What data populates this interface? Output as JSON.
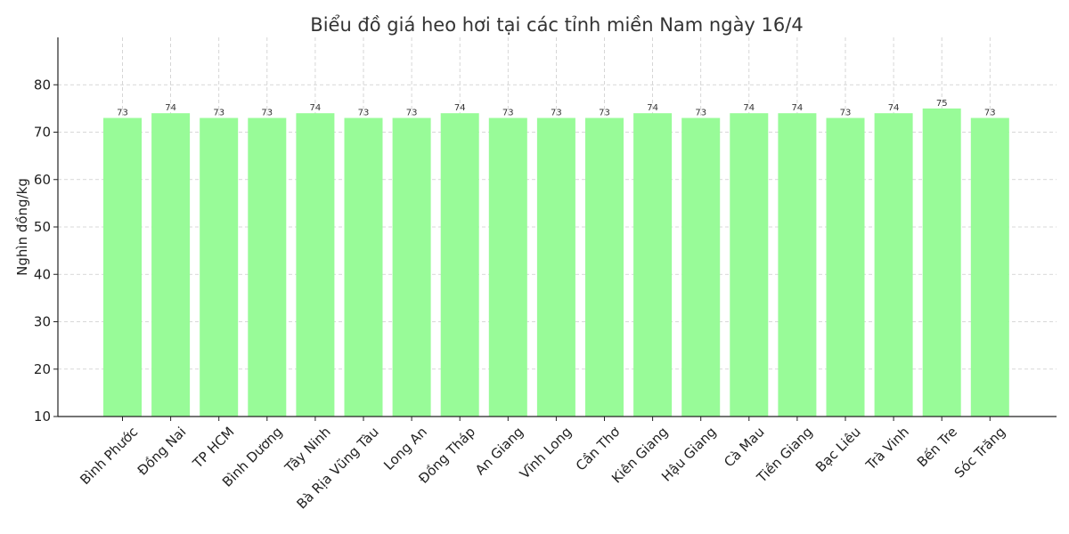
{
  "chart_data": {
    "type": "bar",
    "title": "Biểu đồ giá heo hơi tại các tỉnh miền Nam ngày 16/4",
    "xlabel": "",
    "ylabel": "Nghìn đồng/kg",
    "ylim": [
      10,
      90
    ],
    "yticks": [
      10,
      20,
      30,
      40,
      50,
      60,
      70,
      80
    ],
    "grid": true,
    "bar_color": "#98fb98",
    "categories": [
      "Bình Phước",
      "Đồng Nai",
      "TP HCM",
      "Bình Dương",
      "Tây Ninh",
      "Bà Rịa  Vũng Tàu",
      "Long An",
      "Đồng Tháp",
      "An Giang",
      "Vĩnh Long",
      "Cần Thơ",
      "Kiên Giang",
      "Hậu Giang",
      "Cà Mau",
      "Tiền Giang",
      "Bạc Liêu",
      "Trà Vinh",
      "Bến Tre",
      "Sóc Trăng"
    ],
    "values": [
      73,
      74,
      73,
      73,
      74,
      73,
      73,
      74,
      73,
      73,
      73,
      74,
      73,
      74,
      74,
      73,
      74,
      75,
      73
    ]
  }
}
